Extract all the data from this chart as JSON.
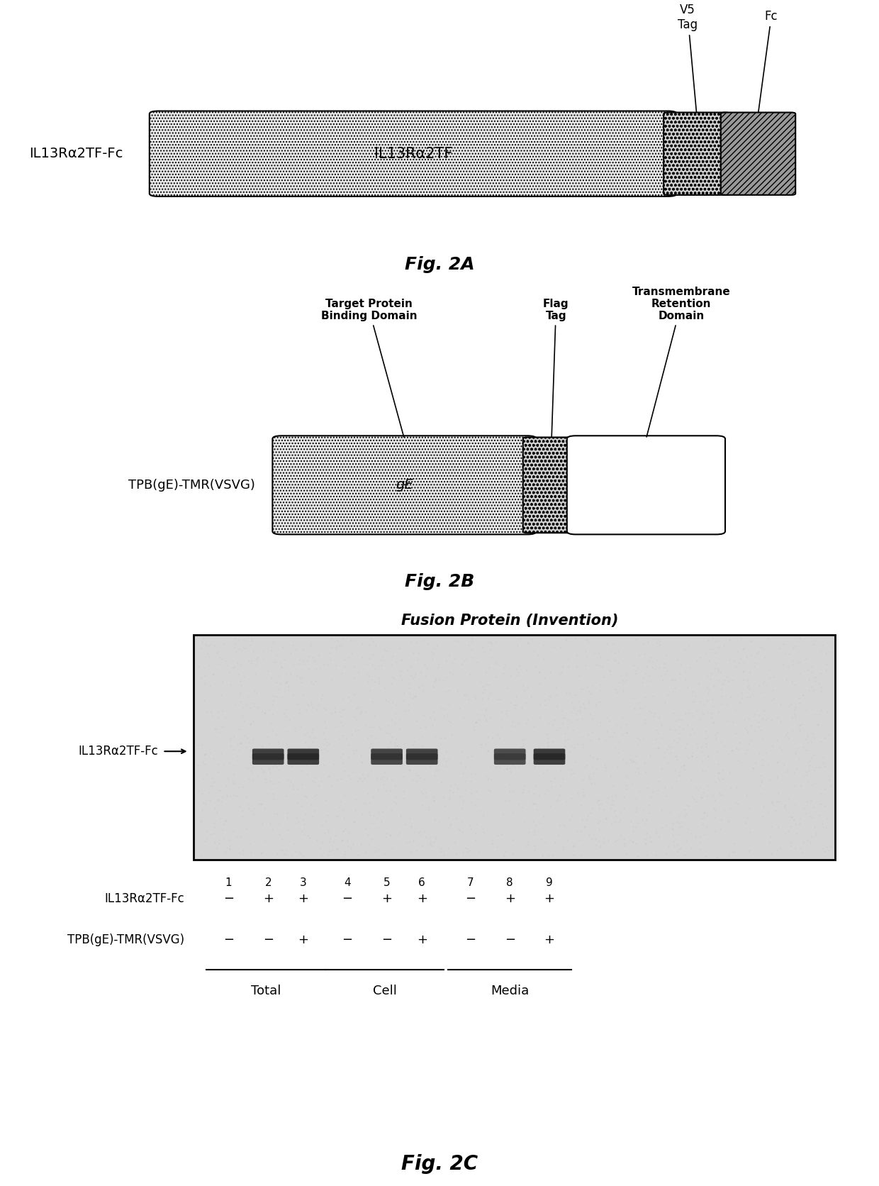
{
  "fig_width": 12.4,
  "fig_height": 16.72,
  "bg_color": "#ffffff",
  "figA": {
    "label": "IL13Rα2TF-Fc",
    "main_box_text": "IL13Rα2TF",
    "tag_label": "V5\nTag",
    "fc_label": "Fc",
    "fig_label": "Fig. 2A"
  },
  "figB": {
    "label": "TPB(gE)-TMR(VSVG)",
    "main_box_text": "gE",
    "labels": [
      "Target Protein\nBinding Domain",
      "Flag\nTag",
      "Transmembrane\nRetention\nDomain"
    ],
    "fig_label": "Fig. 2B"
  },
  "figC": {
    "title": "Fusion Protein (Invention)",
    "y_label": "IL13Rα2TF-Fc",
    "lane_numbers": [
      "1",
      "2",
      "3",
      "4",
      "5",
      "6",
      "7",
      "8",
      "9"
    ],
    "row1_label": "IL13Rα2TF-Fc",
    "row1_vals": [
      "−",
      "+",
      "+",
      "−",
      "+",
      "+",
      "−",
      "+",
      "+"
    ],
    "row2_label": "TPB(gE)-TMR(VSVG)",
    "row2_vals": [
      "−",
      "−",
      "+",
      "−",
      "−",
      "+",
      "−",
      "−",
      "+"
    ],
    "group_labels": [
      "Total",
      "Cell",
      "Media"
    ],
    "fig_label": "Fig. 2C"
  }
}
